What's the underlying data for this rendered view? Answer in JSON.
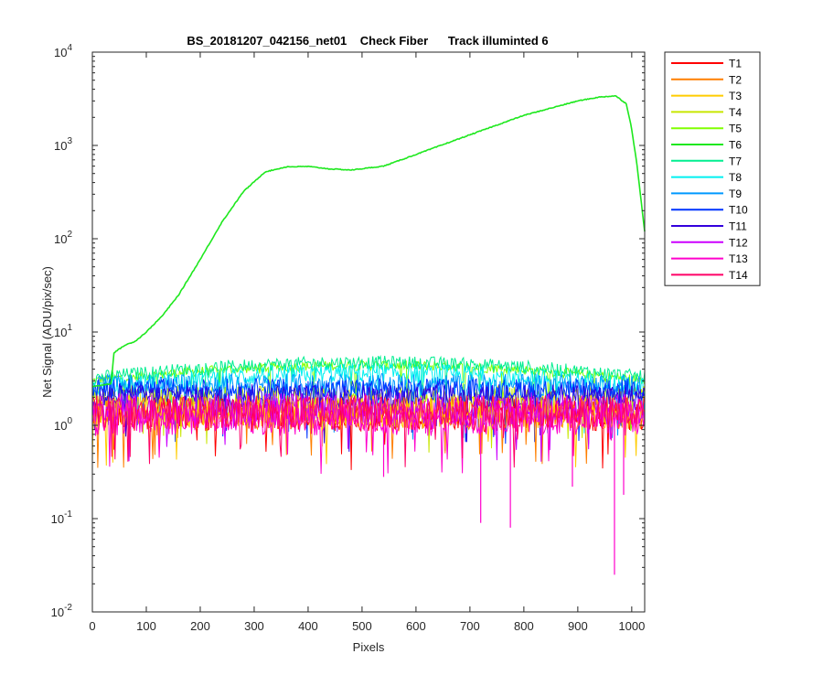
{
  "chart_data": {
    "type": "line",
    "title": "BS_20181207_042156_net01    Check Fiber      Track illuminted 6",
    "xlabel": "Pixels",
    "ylabel": "Net Signal (ADU/pix/sec)",
    "xlim": [
      0,
      1024
    ],
    "ylim": [
      0.01,
      10000
    ],
    "yscale": "log",
    "grid": false,
    "legend_position": "outside-top-right",
    "x_ticks": [
      "0",
      "100",
      "200",
      "300",
      "400",
      "500",
      "600",
      "700",
      "800",
      "900",
      "1000"
    ],
    "y_ticks": [
      {
        "base": "10",
        "exp": "4"
      },
      {
        "base": "10",
        "exp": "3"
      },
      {
        "base": "10",
        "exp": "2"
      },
      {
        "base": "10",
        "exp": "1"
      },
      {
        "base": "10",
        "exp": "0"
      },
      {
        "base": "10",
        "exp": "-1"
      },
      {
        "base": "10",
        "exp": "-2"
      }
    ],
    "series": [
      {
        "name": "T1",
        "color": "#ff0000",
        "level": 1.3,
        "spread": 0.5
      },
      {
        "name": "T2",
        "color": "#ff7f00",
        "level": 1.35,
        "spread": 0.5
      },
      {
        "name": "T3",
        "color": "#ffcc00",
        "level": 1.4,
        "spread": 0.5
      },
      {
        "name": "T4",
        "color": "#c8e600",
        "level": 1.9,
        "spread": 0.4
      },
      {
        "name": "T5",
        "color": "#80ff00",
        "level": 4.0,
        "spread": 0.15
      },
      {
        "name": "T6",
        "color": "#1ee81e",
        "level": 0,
        "spread": 0.02,
        "profile": {
          "x": [
            0,
            35,
            40,
            60,
            80,
            100,
            130,
            160,
            200,
            240,
            280,
            320,
            360,
            400,
            440,
            480,
            540,
            600,
            700,
            800,
            900,
            940,
            970,
            990,
            1000,
            1010,
            1024
          ],
          "y": [
            2.6,
            2.8,
            6.0,
            7.2,
            8.0,
            10.0,
            15.0,
            25.0,
            60.0,
            150.0,
            320.0,
            520.0,
            590.0,
            595.0,
            560.0,
            545.0,
            600.0,
            800.0,
            1300.0,
            2100.0,
            3000.0,
            3300.0,
            3400.0,
            2800.0,
            1500.0,
            600.0,
            120.0
          ]
        }
      },
      {
        "name": "T7",
        "color": "#00ee90",
        "level": 4.3,
        "spread": 0.2
      },
      {
        "name": "T8",
        "color": "#00f0f0",
        "level": 3.3,
        "spread": 0.3
      },
      {
        "name": "T9",
        "color": "#0099ff",
        "level": 2.7,
        "spread": 0.35
      },
      {
        "name": "T10",
        "color": "#0033ff",
        "level": 2.4,
        "spread": 0.35
      },
      {
        "name": "T11",
        "color": "#3300dd",
        "level": 2.0,
        "spread": 0.4
      },
      {
        "name": "T12",
        "color": "#cc00ff",
        "level": 1.5,
        "spread": 0.5
      },
      {
        "name": "T13",
        "color": "#ff00cc",
        "level": 1.2,
        "spread": 0.55
      },
      {
        "name": "T14",
        "color": "#ff0066",
        "level": 1.4,
        "spread": 0.5
      }
    ],
    "spikes": [
      {
        "x": 720,
        "y": 0.09
      },
      {
        "x": 775,
        "y": 0.08
      },
      {
        "x": 968,
        "y": 0.025
      },
      {
        "x": 540,
        "y": 0.28
      },
      {
        "x": 890,
        "y": 0.22
      },
      {
        "x": 985,
        "y": 0.18
      }
    ]
  }
}
